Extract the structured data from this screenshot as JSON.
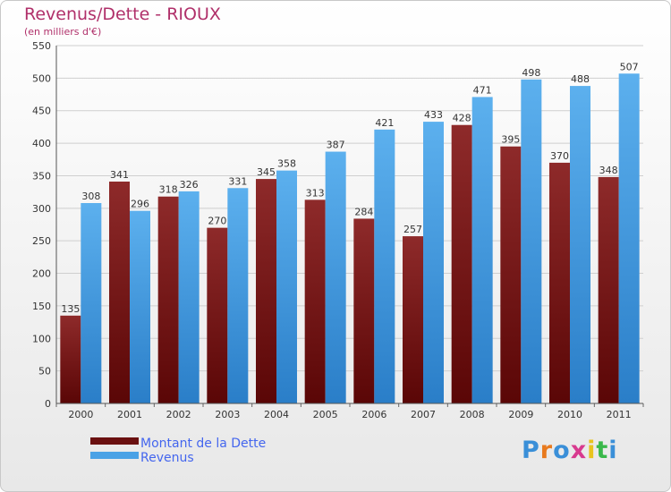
{
  "chart_data": {
    "type": "bar",
    "title": "Revenus/Dette - RIOUX",
    "subtitle": "(en milliers d'€)",
    "categories": [
      "2000",
      "2001",
      "2002",
      "2003",
      "2004",
      "2005",
      "2006",
      "2007",
      "2008",
      "2009",
      "2010",
      "2011"
    ],
    "series": [
      {
        "name": "Montant de la Dette",
        "values": [
          135,
          341,
          318,
          270,
          345,
          313,
          284,
          257,
          428,
          395,
          370,
          348
        ],
        "color": "#7a1a1a"
      },
      {
        "name": "Revenus",
        "values": [
          308,
          296,
          326,
          331,
          358,
          387,
          421,
          433,
          471,
          498,
          488,
          507
        ],
        "color": "#4aa2e6"
      }
    ],
    "ylim": [
      0,
      550
    ],
    "yticks": [
      0,
      50,
      100,
      150,
      200,
      250,
      300,
      350,
      400,
      450,
      500,
      550
    ],
    "grid": true,
    "legend_position": "bottom-left"
  },
  "logo": {
    "text": "Proxiti",
    "colors": [
      "#3a8fd8",
      "#e87a1e",
      "#3a8fd8",
      "#d83a8f",
      "#e8c41e",
      "#3ab84a",
      "#3a8fd8"
    ]
  }
}
